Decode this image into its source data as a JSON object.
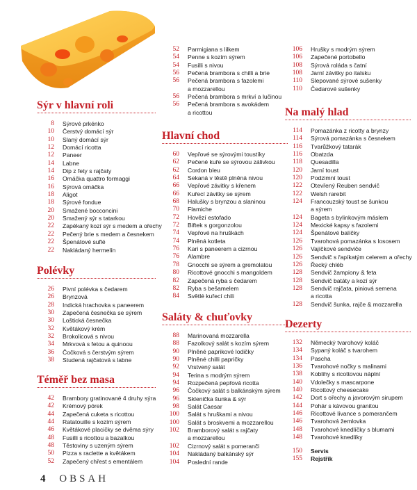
{
  "footer": {
    "page_number": "4",
    "label": "OBSAH"
  },
  "colors": {
    "accent": "#c41e26"
  },
  "sections": [
    {
      "heading": "Sýr v hlavní roli",
      "entries": [
        {
          "page": "8",
          "title": "Sýrové prkénko"
        },
        {
          "page": "10",
          "title": "Čerstvý domácí sýr"
        },
        {
          "page": "10",
          "title": "Slaný domácí sýr"
        },
        {
          "page": "12",
          "title": "Domácí ricotta"
        },
        {
          "page": "12",
          "title": "Paneer"
        },
        {
          "page": "14",
          "title": "Labne"
        },
        {
          "page": "14",
          "title": "Dip z fety s rajčaty"
        },
        {
          "page": "16",
          "title": "Omáčka quattro formaggi"
        },
        {
          "page": "16",
          "title": "Sýrová omáčka"
        },
        {
          "page": "18",
          "title": "Aligot"
        },
        {
          "page": "18",
          "title": "Sýrové fondue"
        },
        {
          "page": "20",
          "title": "Smažené bocconcini"
        },
        {
          "page": "20",
          "title": "Smažený sýr s tatarkou"
        },
        {
          "page": "22",
          "title": "Zapékaný kozí sýr s medem a ořechy"
        },
        {
          "page": "22",
          "title": "Pečený brie s medem a česnekem"
        },
        {
          "page": "22",
          "title": "Špenátové suflé"
        },
        {
          "page": "22",
          "title": "Nakládaný hermelín"
        }
      ]
    },
    {
      "heading": "Polévky",
      "entries": [
        {
          "page": "26",
          "title": "Pivní polévka s čedarem"
        },
        {
          "page": "26",
          "title": "Brynzová"
        },
        {
          "page": "28",
          "title": "Indická hrachovka s paneerem"
        },
        {
          "page": "30",
          "title": "Zapečená česnečka se sýrem"
        },
        {
          "page": "30",
          "title": "Loštická česnečka"
        },
        {
          "page": "32",
          "title": "Květákový krém"
        },
        {
          "page": "32",
          "title": "Brokolicová s nivou"
        },
        {
          "page": "34",
          "title": "Mrkvová s fetou a quinoou"
        },
        {
          "page": "36",
          "title": "Čočková s čerstvým sýrem"
        },
        {
          "page": "38",
          "title": "Studená rajčatová s labne"
        }
      ]
    },
    {
      "heading": "Téměř bez masa",
      "entries": [
        {
          "page": "42",
          "title": "Brambory gratinované 4 druhy sýra"
        },
        {
          "page": "42",
          "title": "Krémový pórek"
        },
        {
          "page": "44",
          "title": "Zapečená cuketa s ricottou"
        },
        {
          "page": "44",
          "title": "Ratatouille s kozím sýrem"
        },
        {
          "page": "46",
          "title": "Květákové placičky se dvěma sýry"
        },
        {
          "page": "48",
          "title": "Fusilli s ricottou a bazalkou"
        },
        {
          "page": "48",
          "title": "Těstoviny s uzeným sýrem"
        },
        {
          "page": "50",
          "title": "Pizza s raclette a květákem"
        },
        {
          "page": "52",
          "title": "Zapečený chřest s ementálem"
        }
      ]
    },
    {
      "heading": "",
      "entries": [
        {
          "page": "52",
          "title": "Parmigiana s lilkem"
        },
        {
          "page": "54",
          "title": "Penne s kozím sýrem"
        },
        {
          "page": "54",
          "title": "Fusilli s nivou"
        },
        {
          "page": "56",
          "title": "Pečená brambora s chilli a brie"
        },
        {
          "page": "56",
          "title": "Pečená brambora s fazolemi",
          "cont": "a mozzarellou"
        },
        {
          "page": "56",
          "title": "Pečená brambora s mrkví a lučinou"
        },
        {
          "page": "56",
          "title": "Pečená brambora s avokádem",
          "cont": "a ricottou"
        }
      ]
    },
    {
      "heading": "Hlavní chod",
      "entries": [
        {
          "page": "60",
          "title": "Vepřové se sýrovými toustíky"
        },
        {
          "page": "62",
          "title": "Pečené kuře se sýrovou zálivkou"
        },
        {
          "page": "62",
          "title": "Cordon bleu"
        },
        {
          "page": "64",
          "title": "Sekaná v těstě plněná nivou"
        },
        {
          "page": "66",
          "title": "Vepřové závitky s křenem"
        },
        {
          "page": "66",
          "title": "Kuřecí závitky se sýrem"
        },
        {
          "page": "68",
          "title": "Halušky s brynzou a slaninou"
        },
        {
          "page": "70",
          "title": "Flamiche"
        },
        {
          "page": "72",
          "title": "Hovězí estofado"
        },
        {
          "page": "72",
          "title": "Biftek s gorgonzolou"
        },
        {
          "page": "74",
          "title": "Vepřové na hruškách"
        },
        {
          "page": "74",
          "title": "Plněná kotleta"
        },
        {
          "page": "76",
          "title": "Kari s paneerem a cizrnou"
        },
        {
          "page": "76",
          "title": "Alambre"
        },
        {
          "page": "78",
          "title": "Gnocchi se sýrem a gremolatou"
        },
        {
          "page": "80",
          "title": "Ricottové gnocchi s mangoldem"
        },
        {
          "page": "82",
          "title": "Zapečená ryba s čedarem"
        },
        {
          "page": "82",
          "title": "Ryba s bešamelem"
        },
        {
          "page": "84",
          "title": "Světlé kuřecí chili"
        }
      ]
    },
    {
      "heading": "Saláty & chuťovky",
      "entries": [
        {
          "page": "88",
          "title": "Marinovaná mozzarella"
        },
        {
          "page": "88",
          "title": "Fazolkový salát s kozím sýrem"
        },
        {
          "page": "90",
          "title": "Plněné paprikové lodičky"
        },
        {
          "page": "90",
          "title": "Plněné chilli papričky"
        },
        {
          "page": "92",
          "title": "Vrstvený salát"
        },
        {
          "page": "94",
          "title": "Terina s modrým sýrem"
        },
        {
          "page": "94",
          "title": "Rozpečená pepřová ricotta"
        },
        {
          "page": "96",
          "title": "Čočkový salát s balkánským sýrem"
        },
        {
          "page": "96",
          "title": "Sklenička šunka & sýr"
        },
        {
          "page": "98",
          "title": "Salát Caesar"
        },
        {
          "page": "100",
          "title": "Salát s hruškami a nivou"
        },
        {
          "page": "100",
          "title": "Salát s broskvemi a mozzarellou"
        },
        {
          "page": "102",
          "title": "Bramborový salát s rajčaty",
          "cont": "a mozzarellou"
        },
        {
          "page": "102",
          "title": "Cizrnový salát s pomeranči"
        },
        {
          "page": "104",
          "title": "Nakládaný balkánský sýr"
        },
        {
          "page": "104",
          "title": "Poslední rande"
        }
      ]
    },
    {
      "heading": "",
      "entries": [
        {
          "page": "106",
          "title": "Hrušky s modrým sýrem"
        },
        {
          "page": "106",
          "title": "Zapečené portobello"
        },
        {
          "page": "108",
          "title": "Sýrová roláda s čatní"
        },
        {
          "page": "108",
          "title": "Jarní závitky po italsku"
        },
        {
          "page": "110",
          "title": "Slepované sýrové sušenky"
        },
        {
          "page": "110",
          "title": "Čedarové sušenky"
        }
      ]
    },
    {
      "heading": "Na malý hlad",
      "entries": [
        {
          "page": "114",
          "title": "Pomazánka z ricotty a brynzy"
        },
        {
          "page": "114",
          "title": "Sýrová pomazánka s česnekem"
        },
        {
          "page": "116",
          "title": "Tvarůžkový tatarák"
        },
        {
          "page": "116",
          "title": "Obatzda"
        },
        {
          "page": "118",
          "title": "Quesadilla"
        },
        {
          "page": "120",
          "title": "Jarní toust"
        },
        {
          "page": "120",
          "title": "Podzimní toust"
        },
        {
          "page": "122",
          "title": "Otevřený Reuben sendvič"
        },
        {
          "page": "122",
          "title": "Welsh rarebit"
        },
        {
          "page": "124",
          "title": "Francouzský toust se šunkou",
          "cont": "a sýrem"
        },
        {
          "page": "124",
          "title": "Bageta s bylinkovým máslem"
        },
        {
          "page": "124",
          "title": "Mexické kapsy s fazolemi"
        },
        {
          "page": "124",
          "title": "Špenátové balíčky"
        },
        {
          "page": "126",
          "title": "Tvarohová pomazánka s lososem"
        },
        {
          "page": "126",
          "title": "Vajíčkové sendviče"
        },
        {
          "page": "126",
          "title": "Sendvič s řapíkatým celerem a ořechy"
        },
        {
          "page": "126",
          "title": "Řecký chléb"
        },
        {
          "page": "128",
          "title": "Sendvič žampiony & feta"
        },
        {
          "page": "128",
          "title": "Sendvič batáty a kozí sýr"
        },
        {
          "page": "128",
          "title": "Sendvič rajčata, piniová semena",
          "cont": "a ricotta"
        },
        {
          "page": "128",
          "title": "Sendvič šunka, rajče & mozzarella"
        }
      ]
    },
    {
      "heading": "Dezerty",
      "entries": [
        {
          "page": "132",
          "title": "Německý tvarohový koláč"
        },
        {
          "page": "134",
          "title": "Sypaný koláč s tvarohem"
        },
        {
          "page": "134",
          "title": "Pascha"
        },
        {
          "page": "136",
          "title": "Tvarohové nočky s malinami"
        },
        {
          "page": "138",
          "title": "Koblihy s ricottovou náplní"
        },
        {
          "page": "140",
          "title": "Vdolečky s mascarpone"
        },
        {
          "page": "140",
          "title": "Ricottový cheesecake"
        },
        {
          "page": "142",
          "title": "Dort s ořechy a javorovým sirupem"
        },
        {
          "page": "144",
          "title": "Pohár s kávovou granitou"
        },
        {
          "page": "146",
          "title": "Ricottové lívance s pomerančem"
        },
        {
          "page": "146",
          "title": "Tvarohová žemlovka"
        },
        {
          "page": "148",
          "title": "Tvarohové knedlíčky s blumami"
        },
        {
          "page": "148",
          "title": "Tvarohové knedlíky"
        }
      ]
    },
    {
      "heading": "",
      "bold": true,
      "entries": [
        {
          "page": "150",
          "title": "Servis"
        },
        {
          "page": "155",
          "title": "Rejstřík"
        }
      ]
    }
  ]
}
